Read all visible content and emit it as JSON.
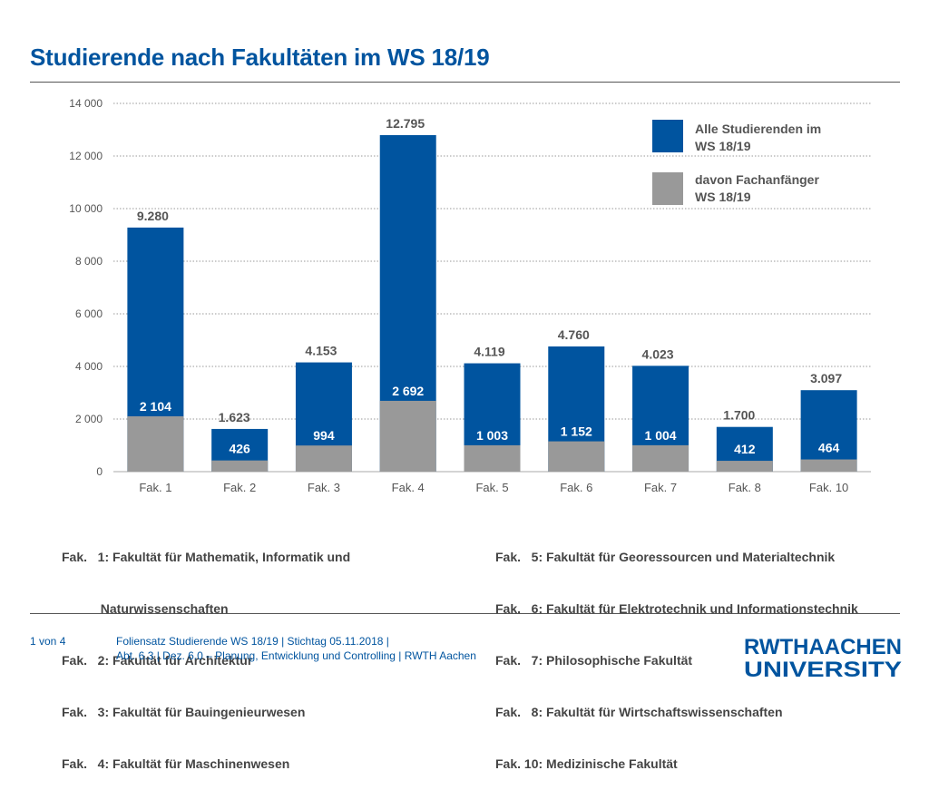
{
  "title": "Studierende nach Fakultäten im WS 18/19",
  "legend": {
    "all_label_line1": "Alle Studierenden im",
    "all_label_line2": "WS 18/19",
    "new_label_line1": "davon Fachanfänger",
    "new_label_line2": "WS 18/19"
  },
  "notes_left": [
    "Fak.   1: Fakultät für Mathematik, Informatik und",
    "           Naturwissenschaften",
    "Fak.   2: Fakultät für Architektur",
    "Fak.   3: Fakultät für Bauingenieurwesen",
    "Fak.   4: Fakultät für Maschinenwesen"
  ],
  "notes_right": [
    "Fak.   5: Fakultät für Georessourcen und Materialtechnik",
    "Fak.   6: Fakultät für Elektrotechnik und Informationstechnik",
    "Fak.   7: Philosophische Fakultät",
    "Fak.   8: Fakultät für Wirtschaftswissenschaften",
    "Fak. 10: Medizinische Fakultät"
  ],
  "footer": {
    "page": "1 von 4",
    "line1": "Foliensatz Studierende WS 18/19  |  Stichtag 05.11.2018  |",
    "line2": "Abt. 6.3 | Dez. 6.0 – Planung, Entwicklung und Controlling | RWTH Aachen"
  },
  "logo": {
    "top": "RWTHAACHEN",
    "bottom": "UNIVERSITY",
    "color": "#00549f"
  },
  "colors": {
    "all": "#00549f",
    "new": "#999999",
    "grid": "#999999"
  },
  "chart_data": {
    "type": "bar",
    "categories": [
      "Fak. 1",
      "Fak. 2",
      "Fak. 3",
      "Fak. 4",
      "Fak. 5",
      "Fak. 6",
      "Fak. 7",
      "Fak. 8",
      "Fak. 10"
    ],
    "series": [
      {
        "name": "Alle Studierenden im WS 18/19",
        "values": [
          9280,
          1623,
          4153,
          12795,
          4119,
          4760,
          4023,
          1700,
          3097
        ],
        "labels": [
          "9.280",
          "1.623",
          "4.153",
          "12.795",
          "4.119",
          "4.760",
          "4.023",
          "1.700",
          "3.097"
        ]
      },
      {
        "name": "davon Fachanfänger WS 18/19",
        "values": [
          2104,
          426,
          994,
          2692,
          1003,
          1152,
          1004,
          412,
          464
        ],
        "labels": [
          "2 104",
          "426",
          "994",
          "2 692",
          "1 003",
          "1 152",
          "1 004",
          "412",
          "464"
        ]
      }
    ],
    "ylim": [
      0,
      14000
    ],
    "yticks": [
      0,
      2000,
      4000,
      6000,
      8000,
      10000,
      12000,
      14000
    ],
    "ytick_labels": [
      "0",
      "2 000",
      "4 000",
      "6 000",
      "8 000",
      "10 000",
      "12 000",
      "14 000"
    ],
    "grid": true,
    "legend_position": "top-right"
  }
}
